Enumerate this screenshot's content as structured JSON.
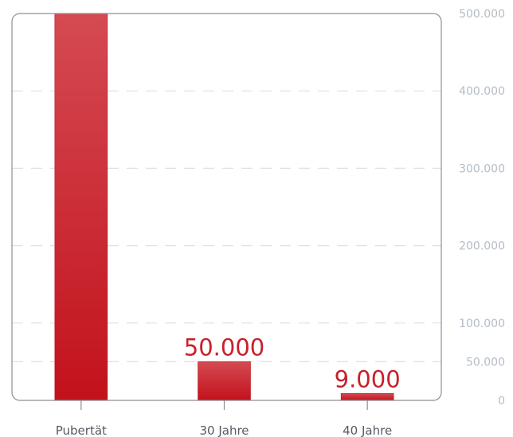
{
  "chart_data": {
    "type": "bar",
    "categories": [
      "Pubertät",
      "30 Jahre",
      "40 Jahre"
    ],
    "values": [
      500000,
      50000,
      9000
    ],
    "data_labels": [
      "",
      "50.000",
      "9.000"
    ],
    "ylim": [
      0,
      500000
    ],
    "yticks": [
      0,
      50000,
      100000,
      200000,
      300000,
      400000,
      500000
    ],
    "ytick_labels": [
      "0",
      "50.000",
      "100.000",
      "200.000",
      "300.000",
      "400.000",
      "500.000"
    ],
    "y_axis_position": "right",
    "grid": true,
    "title": "",
    "xlabel": "",
    "ylabel": "",
    "colors": {
      "bar_top": "#d54a52",
      "bar_bottom": "#c2121c",
      "data_label": "#c8202a",
      "gridline": "#dde1e6",
      "frame": "#8f8f8f",
      "tick_label": "#b4bcc6",
      "category_label": "#555b61"
    }
  }
}
